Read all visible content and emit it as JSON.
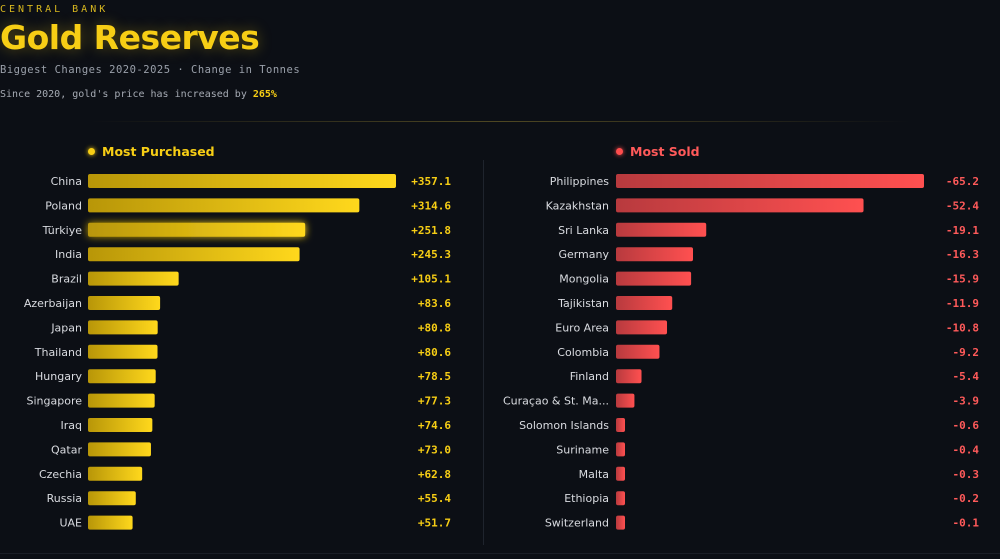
{
  "header": {
    "eyebrow": "CENTRAL BANK",
    "title": "Gold Reserves",
    "subtitle": "Biggest Changes 2020-2025 · Change in Tonnes",
    "note_prefix": "Since 2020, gold's price has increased by ",
    "note_highlight": "265%"
  },
  "colors": {
    "gold": "#f7ce15",
    "red": "#ff4d4d",
    "background": "#0c0f15"
  },
  "chart_data": [
    {
      "type": "bar",
      "orientation": "horizontal",
      "title": "Most Purchased",
      "unit": "tonnes",
      "categories": [
        "China",
        "Poland",
        "Türkiye",
        "India",
        "Brazil",
        "Azerbaijan",
        "Japan",
        "Thailand",
        "Hungary",
        "Singapore",
        "Iraq",
        "Qatar",
        "Czechia",
        "Russia",
        "UAE"
      ],
      "values": [
        357.1,
        314.6,
        251.8,
        245.3,
        105.1,
        83.6,
        80.8,
        80.6,
        78.5,
        77.3,
        74.6,
        73.0,
        62.8,
        55.4,
        51.7
      ],
      "labels": [
        "+357.1",
        "+314.6",
        "+251.8",
        "+245.3",
        "+105.1",
        "+83.6",
        "+80.8",
        "+80.6",
        "+78.5",
        "+77.3",
        "+74.6",
        "+73.0",
        "+62.8",
        "+55.4",
        "+51.7"
      ],
      "xlim": [
        0,
        357.1
      ],
      "highlight": "Türkiye"
    },
    {
      "type": "bar",
      "orientation": "horizontal",
      "title": "Most Sold",
      "unit": "tonnes",
      "categories": [
        "Philippines",
        "Kazakhstan",
        "Sri Lanka",
        "Germany",
        "Mongolia",
        "Tajikistan",
        "Euro Area",
        "Colombia",
        "Finland",
        "Curaçao & St. Ma...",
        "Solomon Islands",
        "Suriname",
        "Malta",
        "Ethiopia",
        "Switzerland"
      ],
      "values": [
        -65.2,
        -52.4,
        -19.1,
        -16.3,
        -15.9,
        -11.9,
        -10.8,
        -9.2,
        -5.4,
        -3.9,
        -0.6,
        -0.4,
        -0.3,
        -0.2,
        -0.1
      ],
      "labels": [
        "-65.2",
        "-52.4",
        "-19.1",
        "-16.3",
        "-15.9",
        "-11.9",
        "-10.8",
        "-9.2",
        "-5.4",
        "-3.9",
        "-0.6",
        "-0.4",
        "-0.3",
        "-0.2",
        "-0.1"
      ],
      "xlim": [
        -65.2,
        0
      ]
    }
  ]
}
